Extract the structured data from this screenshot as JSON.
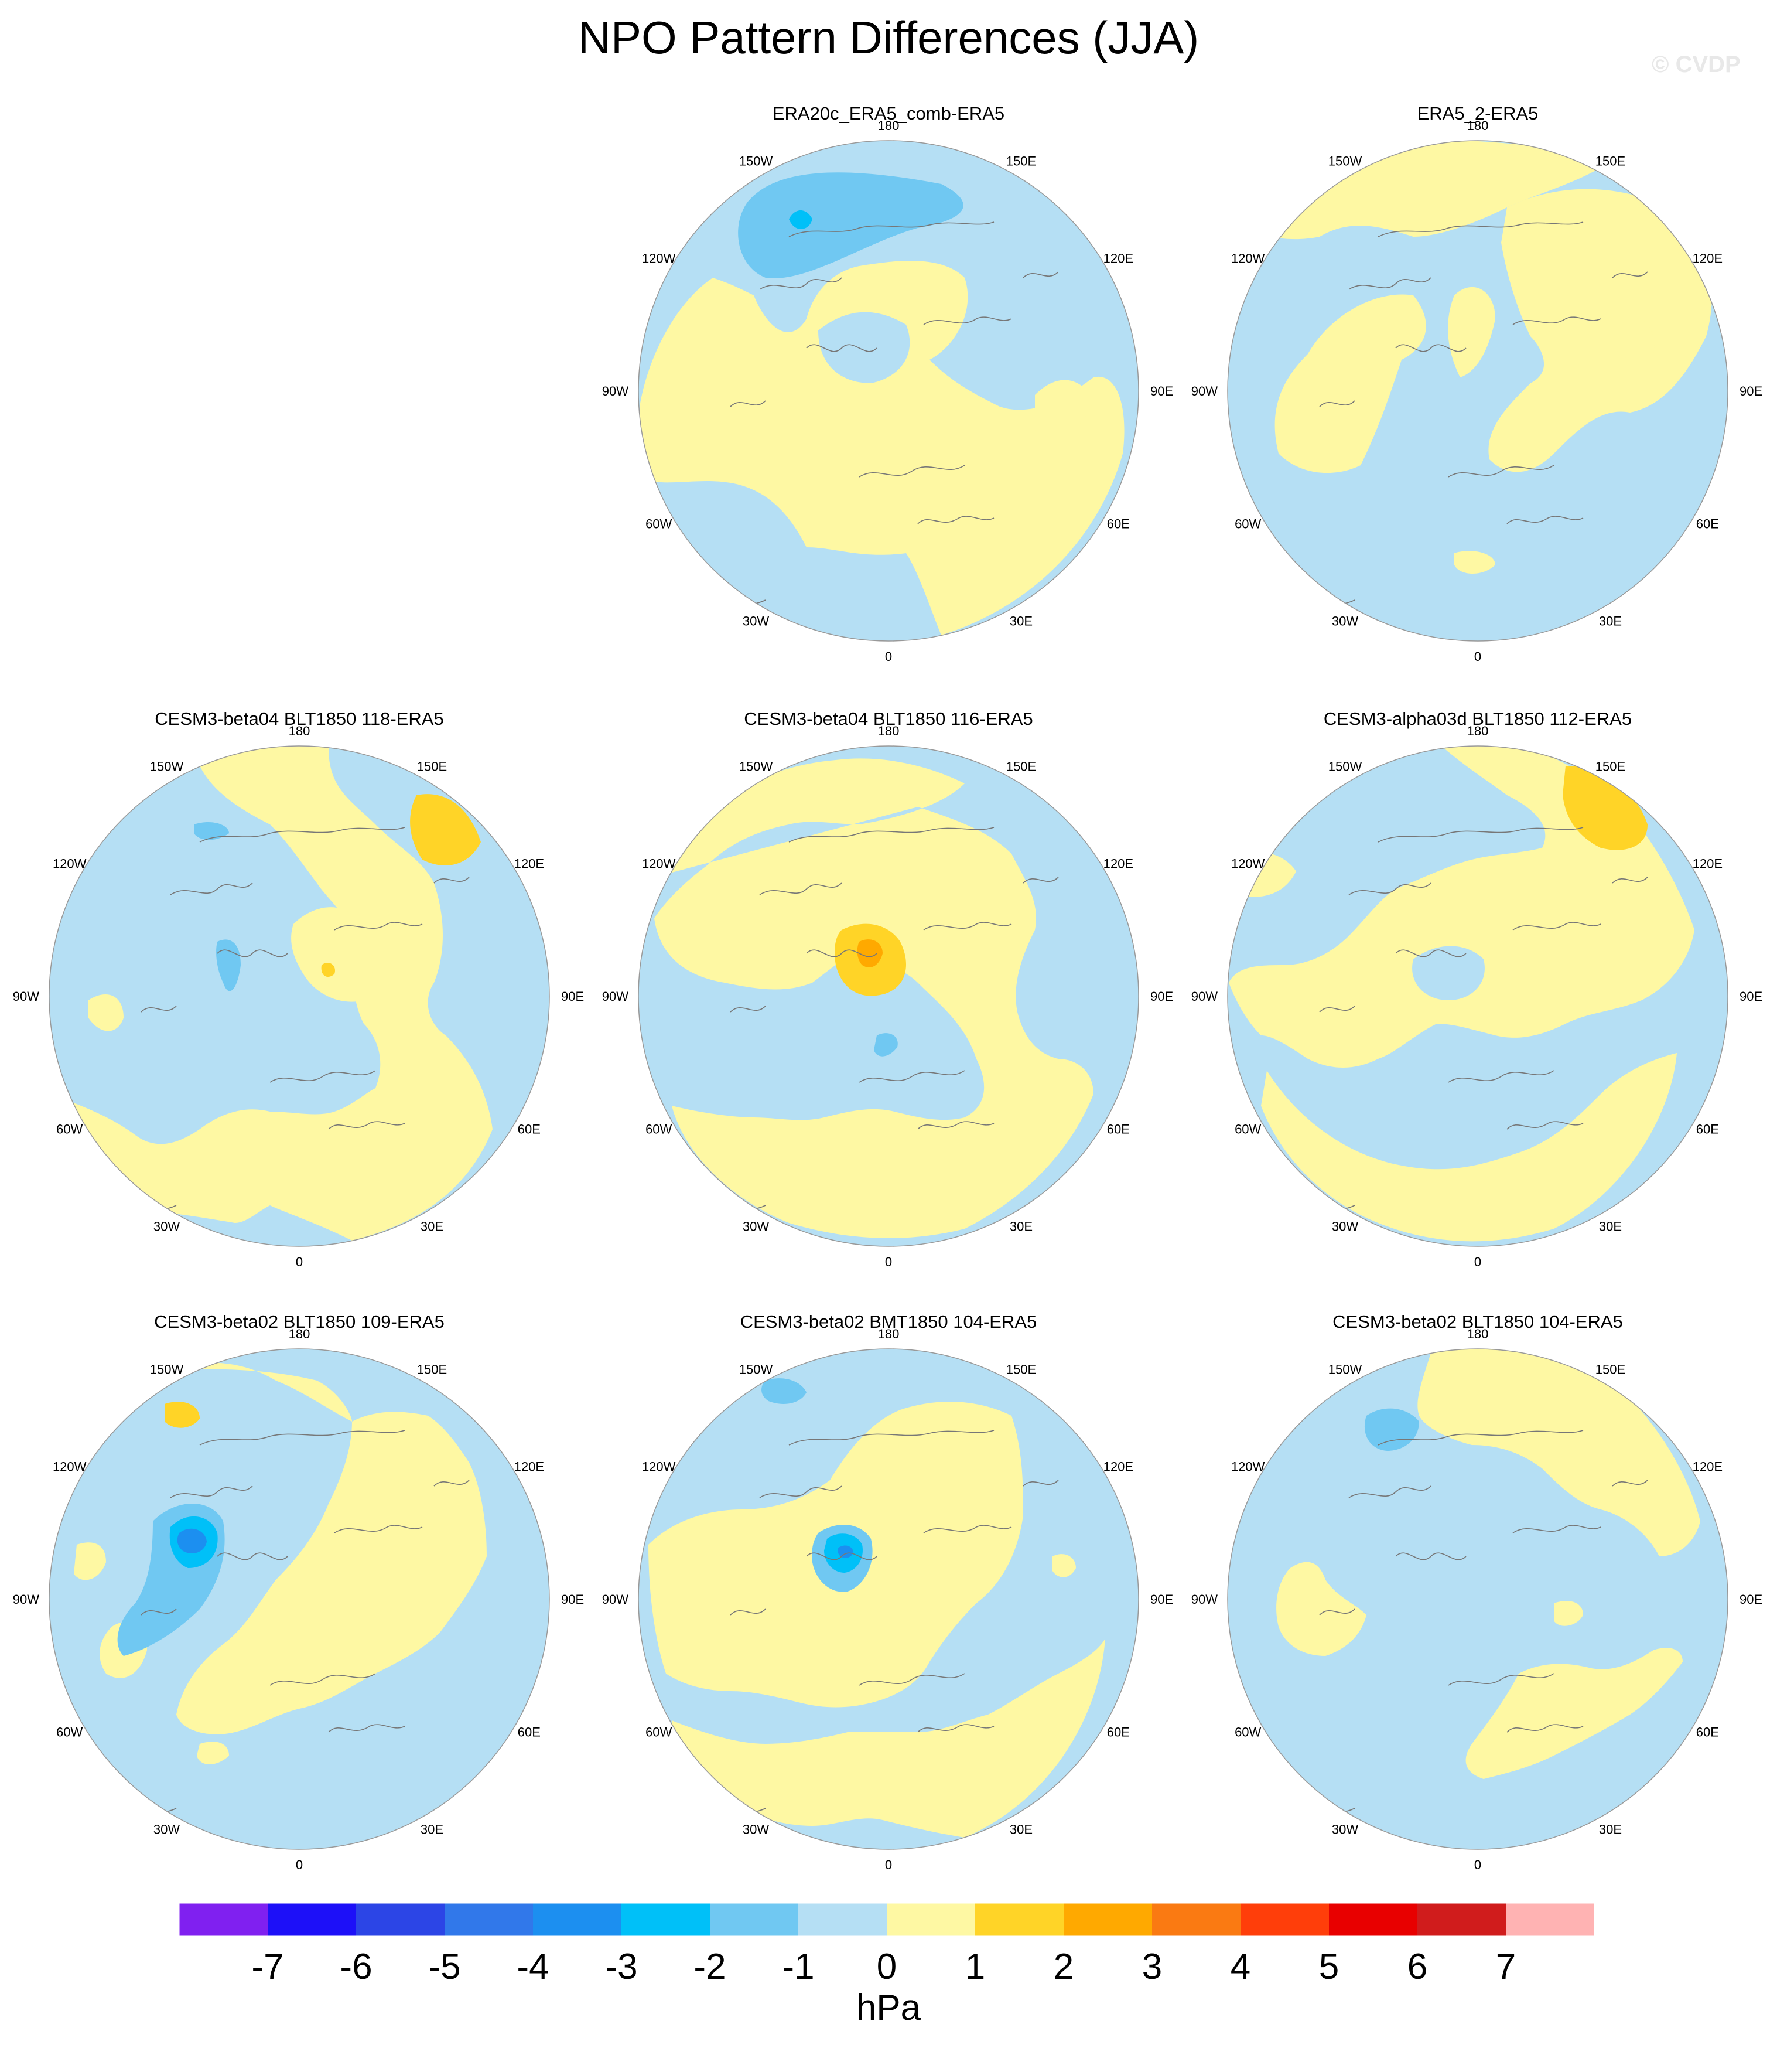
{
  "title": "NPO Pattern Differences (JJA)",
  "watermark": "© CVDP",
  "lon_labels": [
    "180",
    "150E",
    "120E",
    "90E",
    "60E",
    "30E",
    "0",
    "30W",
    "60W",
    "90W",
    "120W",
    "150W"
  ],
  "colorbar": {
    "units": "hPa",
    "colors": [
      "#8020f0",
      "#1d10f8",
      "#2c45e6",
      "#3178ea",
      "#1c8ff0",
      "#00c0f8",
      "#70c8f2",
      "#b5dff4",
      "#fef8a3",
      "#ffd427",
      "#ffa900",
      "#fa7a12",
      "#ff3e0a",
      "#e80000",
      "#d01c1c",
      "#ffb3b3"
    ],
    "labels": [
      "-7",
      "-6",
      "-5",
      "-4",
      "-3",
      "-2",
      "-1",
      "0",
      "1",
      "2",
      "3",
      "4",
      "5",
      "6",
      "7"
    ]
  },
  "panels": [
    {
      "title": "ERA20c_ERA5_comb-ERA5",
      "pattern": "A"
    },
    {
      "title": "ERA5_2-ERA5",
      "pattern": "B"
    },
    {
      "title": "CESM3-beta04 BLT1850 118-ERA5",
      "pattern": "C"
    },
    {
      "title": "CESM3-beta04 BLT1850 116-ERA5",
      "pattern": "D"
    },
    {
      "title": "CESM3-alpha03d BLT1850 112-ERA5",
      "pattern": "E"
    },
    {
      "title": "CESM3-beta02 BLT1850 109-ERA5",
      "pattern": "F"
    },
    {
      "title": "CESM3-beta02 BMT1850 104-ERA5",
      "pattern": "G"
    },
    {
      "title": "CESM3-beta02 BLT1850 104-ERA5",
      "pattern": "H"
    }
  ]
}
